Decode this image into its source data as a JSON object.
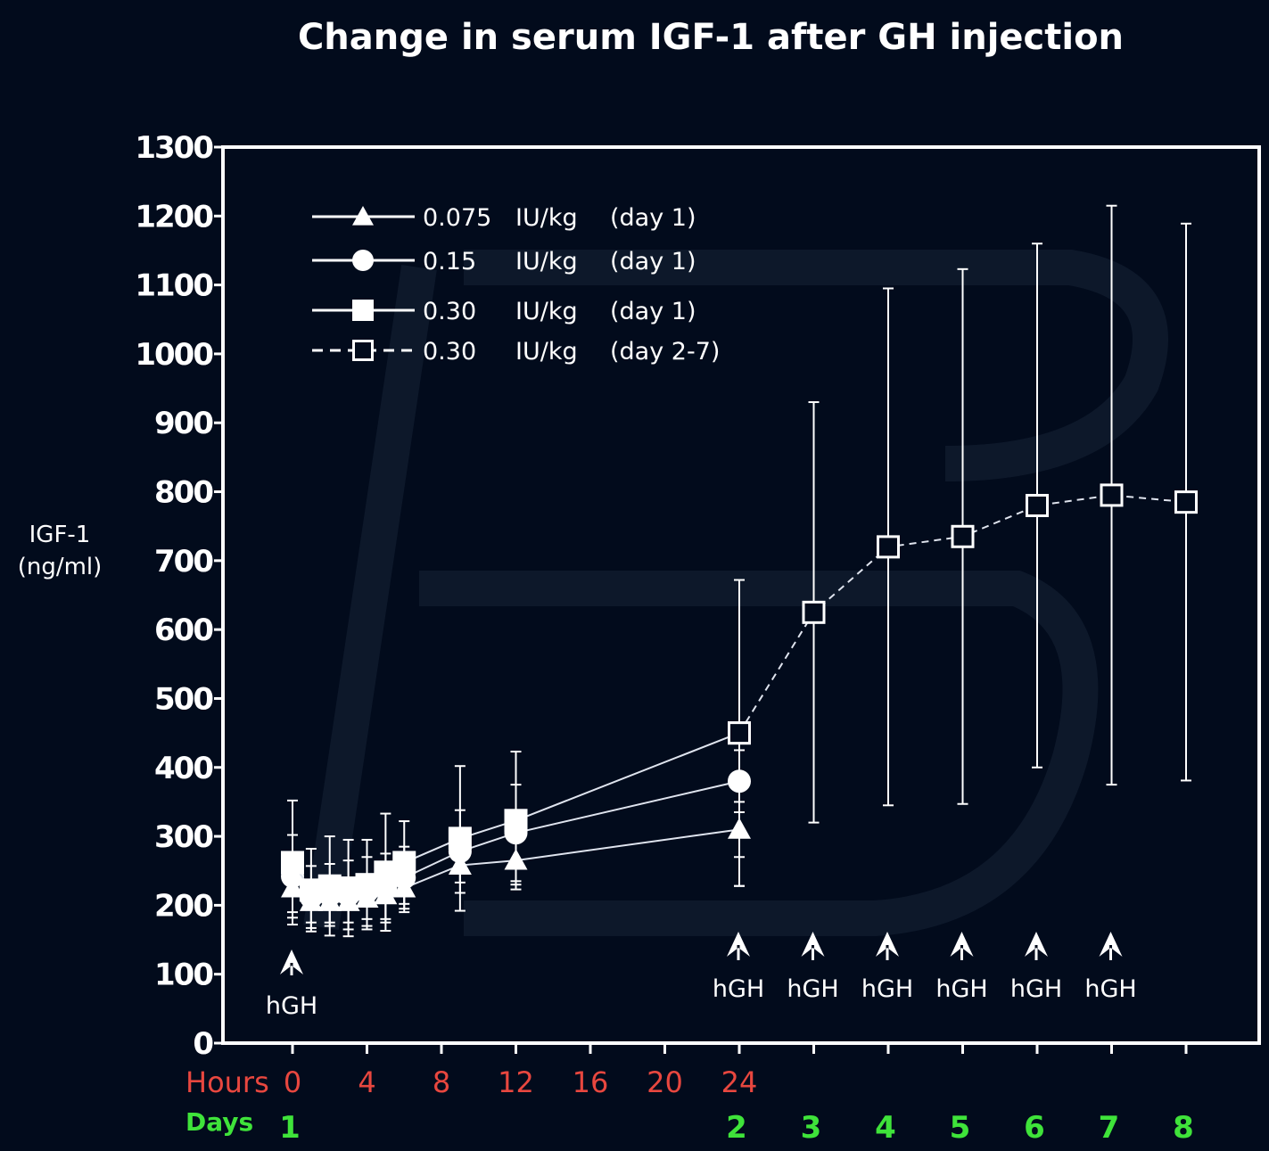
{
  "chart_data": {
    "type": "line",
    "title": "Change in serum IGF-1 after GH injection",
    "ylabel": [
      "IGF-1",
      "(ng/ml)"
    ],
    "ylim": [
      0,
      1300
    ],
    "yticks": [
      0,
      100,
      200,
      300,
      400,
      500,
      600,
      700,
      800,
      900,
      1000,
      1100,
      1200,
      1300
    ],
    "x_units_note": "hours after first injection on day 1; days 2-8 placed on the same axis",
    "hours_label": "Hours",
    "hours_ticks": [
      0,
      4,
      8,
      12,
      16,
      20,
      24
    ],
    "days_label": "Days",
    "days_ticks": [
      {
        "label": "1",
        "x": 0
      },
      {
        "label": "2",
        "x": 24
      },
      {
        "label": "3",
        "x": 28
      },
      {
        "label": "4",
        "x": 32
      },
      {
        "label": "5",
        "x": 36
      },
      {
        "label": "6",
        "x": 40
      },
      {
        "label": "7",
        "x": 44
      },
      {
        "label": "8",
        "x": 48
      }
    ],
    "xlim": [
      0,
      51.7
    ],
    "grid": false,
    "legend_position": "top-left",
    "series": [
      {
        "name": "0.075",
        "unit": "IU/kg",
        "period": "(day 1)",
        "marker": "triangle",
        "dashed": false,
        "x": [
          0,
          1,
          2,
          3,
          4,
          5,
          6,
          9,
          12,
          24
        ],
        "y": [
          225,
          205,
          205,
          205,
          210,
          215,
          225,
          258,
          265,
          310
        ],
        "err": [
          35,
          30,
          30,
          30,
          30,
          35,
          35,
          25,
          35,
          40
        ]
      },
      {
        "name": "0.15",
        "unit": "IU/kg",
        "period": "(day 1)",
        "marker": "circle",
        "dashed": false,
        "x": [
          0,
          1,
          2,
          3,
          4,
          5,
          6,
          9,
          12,
          24
        ],
        "y": [
          242,
          212,
          215,
          215,
          220,
          225,
          240,
          278,
          305,
          380
        ],
        "err": [
          60,
          45,
          45,
          50,
          50,
          50,
          45,
          60,
          70,
          45
        ]
      },
      {
        "name": "0.30",
        "unit": "IU/kg",
        "period": "(day 1)",
        "marker": "square",
        "dashed": false,
        "x": [
          0,
          1,
          2,
          3,
          4,
          5,
          6,
          9,
          12,
          24
        ],
        "y": [
          262,
          222,
          228,
          225,
          230,
          248,
          262,
          297,
          323,
          450
        ],
        "err": [
          90,
          60,
          72,
          70,
          65,
          85,
          60,
          105,
          100,
          222
        ]
      },
      {
        "name": "0.30",
        "unit": "IU/kg",
        "period": "(day 2-7)",
        "marker": "open-square",
        "dashed": true,
        "x": [
          24,
          28,
          32,
          36,
          40,
          44,
          48
        ],
        "y": [
          450,
          625,
          720,
          735,
          780,
          795,
          785
        ],
        "err": [
          222,
          305,
          375,
          388,
          380,
          420,
          404
        ]
      }
    ],
    "annotations": [
      {
        "text": "hGH",
        "x": 0
      },
      {
        "text": "hGH",
        "x": 24
      },
      {
        "text": "hGH",
        "x": 28
      },
      {
        "text": "hGH",
        "x": 32
      },
      {
        "text": "hGH",
        "x": 36
      },
      {
        "text": "hGH",
        "x": 40
      },
      {
        "text": "hGH",
        "x": 44
      }
    ],
    "colors": {
      "background": "#020b1c",
      "foreground": "#ffffff",
      "hours": "#e8473f",
      "days": "#3fe33a"
    }
  }
}
